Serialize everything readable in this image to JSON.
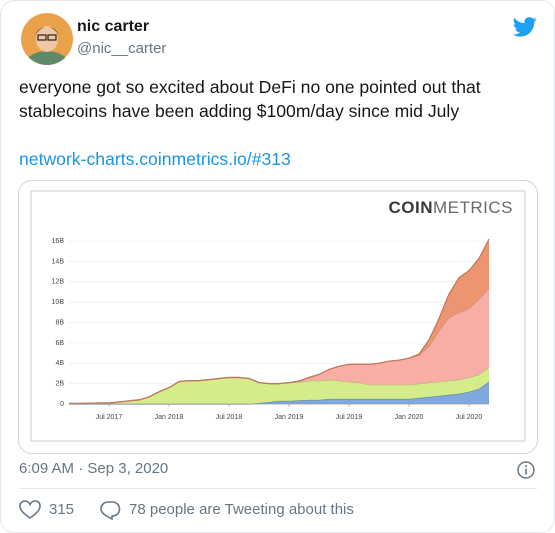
{
  "tweet": {
    "name": "nic carter",
    "handle": "@nic__carter",
    "text_lines": [
      "everyone got so excited about DeFi no one pointed out that",
      "stablecoins have been adding $100m/day since mid July"
    ],
    "link": "network-charts.coinmetrics.io/#313",
    "timestamp": "6:09 AM · Sep 3, 2020",
    "likes": "315",
    "tweeting": "78 people are Tweeting about this"
  },
  "chart_data": {
    "type": "stacked_area",
    "logo_parts": [
      "COIN",
      "METRICS"
    ],
    "x": [
      "2017-03",
      "2017-04",
      "2017-05",
      "2017-06",
      "2017-07",
      "2017-08",
      "2017-09",
      "2017-10",
      "2017-11",
      "2017-12",
      "2018-01",
      "2018-02",
      "2018-03",
      "2018-04",
      "2018-05",
      "2018-06",
      "2018-07",
      "2018-08",
      "2018-09",
      "2018-10",
      "2018-11",
      "2018-12",
      "2019-01",
      "2019-02",
      "2019-03",
      "2019-04",
      "2019-05",
      "2019-06",
      "2019-07",
      "2019-08",
      "2019-09",
      "2019-10",
      "2019-11",
      "2019-12",
      "2020-01",
      "2020-02",
      "2020-03",
      "2020-04",
      "2020-05",
      "2020-06",
      "2020-07",
      "2020-08",
      "2020-09"
    ],
    "series": [
      {
        "color": "#7fa8de",
        "values": [
          0,
          0,
          0,
          0,
          0,
          0,
          0,
          0,
          0,
          0,
          0,
          0,
          0,
          0,
          0,
          0,
          0,
          0,
          0,
          0.1,
          0.2,
          0.3,
          0.3,
          0.35,
          0.4,
          0.4,
          0.5,
          0.5,
          0.5,
          0.5,
          0.5,
          0.5,
          0.5,
          0.5,
          0.5,
          0.6,
          0.7,
          0.8,
          0.9,
          1.0,
          1.2,
          1.5,
          2.2
        ]
      },
      {
        "color": "#d4ec8a",
        "values": [
          0.05,
          0.05,
          0.08,
          0.1,
          0.1,
          0.2,
          0.3,
          0.4,
          0.7,
          1.2,
          1.6,
          2.2,
          2.3,
          2.3,
          2.4,
          2.5,
          2.6,
          2.6,
          2.5,
          2.0,
          1.8,
          1.7,
          1.8,
          1.8,
          1.9,
          1.9,
          1.9,
          1.8,
          1.7,
          1.6,
          1.4,
          1.4,
          1.4,
          1.4,
          1.4,
          1.4,
          1.4,
          1.4,
          1.4,
          1.4,
          1.4,
          1.4,
          1.4
        ]
      },
      {
        "color": "#f9aea5",
        "values": [
          0,
          0,
          0,
          0,
          0,
          0,
          0,
          0,
          0,
          0,
          0,
          0,
          0,
          0,
          0,
          0,
          0,
          0,
          0,
          0,
          0,
          0,
          0,
          0.1,
          0.3,
          0.6,
          1.0,
          1.4,
          1.7,
          1.8,
          2.0,
          2.1,
          2.3,
          2.4,
          2.6,
          2.8,
          3.6,
          5.0,
          6.2,
          6.6,
          6.8,
          7.4,
          7.8
        ]
      },
      {
        "color": "#ec9570",
        "values": [
          0,
          0,
          0,
          0,
          0,
          0,
          0,
          0,
          0,
          0,
          0,
          0,
          0,
          0,
          0,
          0,
          0,
          0,
          0,
          0,
          0,
          0,
          0,
          0,
          0,
          0,
          0,
          0,
          0,
          0,
          0,
          0,
          0,
          0,
          0,
          0.1,
          0.6,
          1.2,
          2.3,
          3.4,
          3.7,
          4.0,
          4.8
        ]
      }
    ],
    "xlim": [
      "2017-03",
      "2020-09"
    ],
    "xticks": [
      {
        "value": "2017-07",
        "label": "Jul 2017"
      },
      {
        "value": "2018-01",
        "label": "Jan 2018"
      },
      {
        "value": "2018-07",
        "label": "Jul 2018"
      },
      {
        "value": "2019-01",
        "label": "Jan 2019"
      },
      {
        "value": "2019-07",
        "label": "Jul 2019"
      },
      {
        "value": "2020-01",
        "label": "Jan 2020"
      },
      {
        "value": "2020-07",
        "label": "Jul 2020"
      }
    ],
    "ylim": [
      0,
      16.5
    ],
    "yticks": [
      0,
      {
        "value": 2,
        "label": "2B"
      },
      {
        "value": 4,
        "label": "4B"
      },
      {
        "value": 6,
        "label": "6B"
      },
      {
        "value": 8,
        "label": "8B"
      },
      {
        "value": 10,
        "label": "10B"
      },
      {
        "value": 12,
        "label": "12B"
      },
      {
        "value": 14,
        "label": "14B"
      },
      {
        "value": 16,
        "label": "16B"
      }
    ],
    "grid": true
  }
}
